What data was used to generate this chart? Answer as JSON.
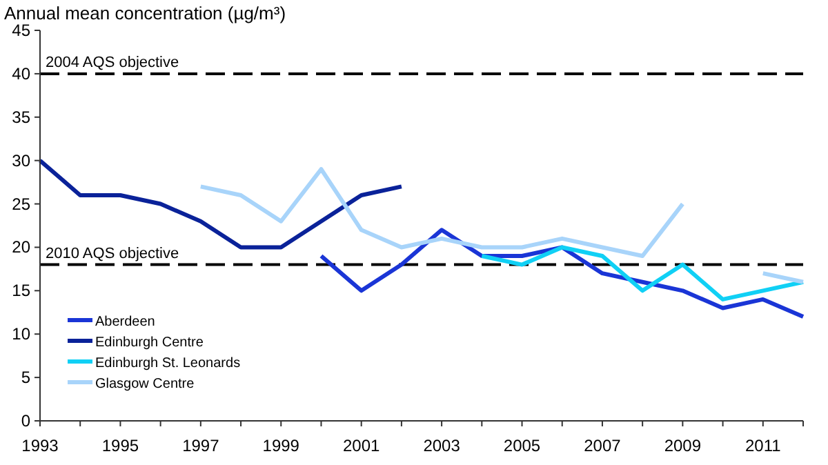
{
  "chart_data": {
    "type": "line",
    "ylabel": "Annual mean concentration (µg/m³)",
    "x": [
      1993,
      1994,
      1995,
      1996,
      1997,
      1998,
      1999,
      2000,
      2001,
      2002,
      2003,
      2004,
      2005,
      2006,
      2007,
      2008,
      2009,
      2010,
      2011,
      2012
    ],
    "series": [
      {
        "name": "Aberdeen",
        "color": "#1a35d6",
        "values": [
          null,
          null,
          null,
          null,
          null,
          null,
          null,
          19,
          15,
          18,
          22,
          19,
          19,
          20,
          17,
          16,
          15,
          13,
          14,
          12
        ]
      },
      {
        "name": "Edinburgh Centre",
        "color": "#0a2299",
        "values": [
          30,
          26,
          26,
          25,
          23,
          20,
          20,
          23,
          26,
          27,
          null,
          null,
          null,
          null,
          null,
          null,
          null,
          null,
          null,
          null
        ]
      },
      {
        "name": "Edinburgh St. Leonards",
        "color": "#10d0f5",
        "values": [
          null,
          null,
          null,
          null,
          null,
          null,
          null,
          null,
          null,
          null,
          null,
          19,
          18,
          20,
          19,
          15,
          18,
          14,
          15,
          16
        ]
      },
      {
        "name": "Glasgow Centre",
        "color": "#a8d4fa",
        "values": [
          null,
          null,
          null,
          null,
          27,
          26,
          23,
          29,
          22,
          20,
          21,
          20,
          20,
          21,
          20,
          19,
          25,
          null,
          17,
          16
        ]
      }
    ],
    "xlim": [
      1993,
      2012
    ],
    "xticks": [
      1993,
      {
        "value": 1994,
        "label": null
      },
      1995,
      {
        "value": 1996,
        "label": null
      },
      1997,
      {
        "value": 1998,
        "label": null
      },
      1999,
      {
        "value": 2000,
        "label": null
      },
      2001,
      {
        "value": 2002,
        "label": null
      },
      2003,
      {
        "value": 2004,
        "label": null
      },
      2005,
      {
        "value": 2006,
        "label": null
      },
      2007,
      {
        "value": 2008,
        "label": null
      },
      2009,
      {
        "value": 2010,
        "label": null
      },
      2011,
      {
        "value": 2012,
        "label": null
      }
    ],
    "ylim": [
      0,
      45
    ],
    "yticks": [
      0,
      5,
      10,
      15,
      20,
      25,
      30,
      35,
      40,
      45
    ],
    "ref_lines": [
      {
        "axis": "y",
        "value": 40,
        "label": "2004 AQS objective",
        "color": "#000000",
        "line_style": "dashed"
      },
      {
        "axis": "y",
        "value": 18,
        "label": "2010 AQS objective",
        "color": "#000000",
        "line_style": "dashed"
      }
    ],
    "legend": "bottom left",
    "grid": false,
    "marker": "none",
    "line_style": "solid"
  }
}
